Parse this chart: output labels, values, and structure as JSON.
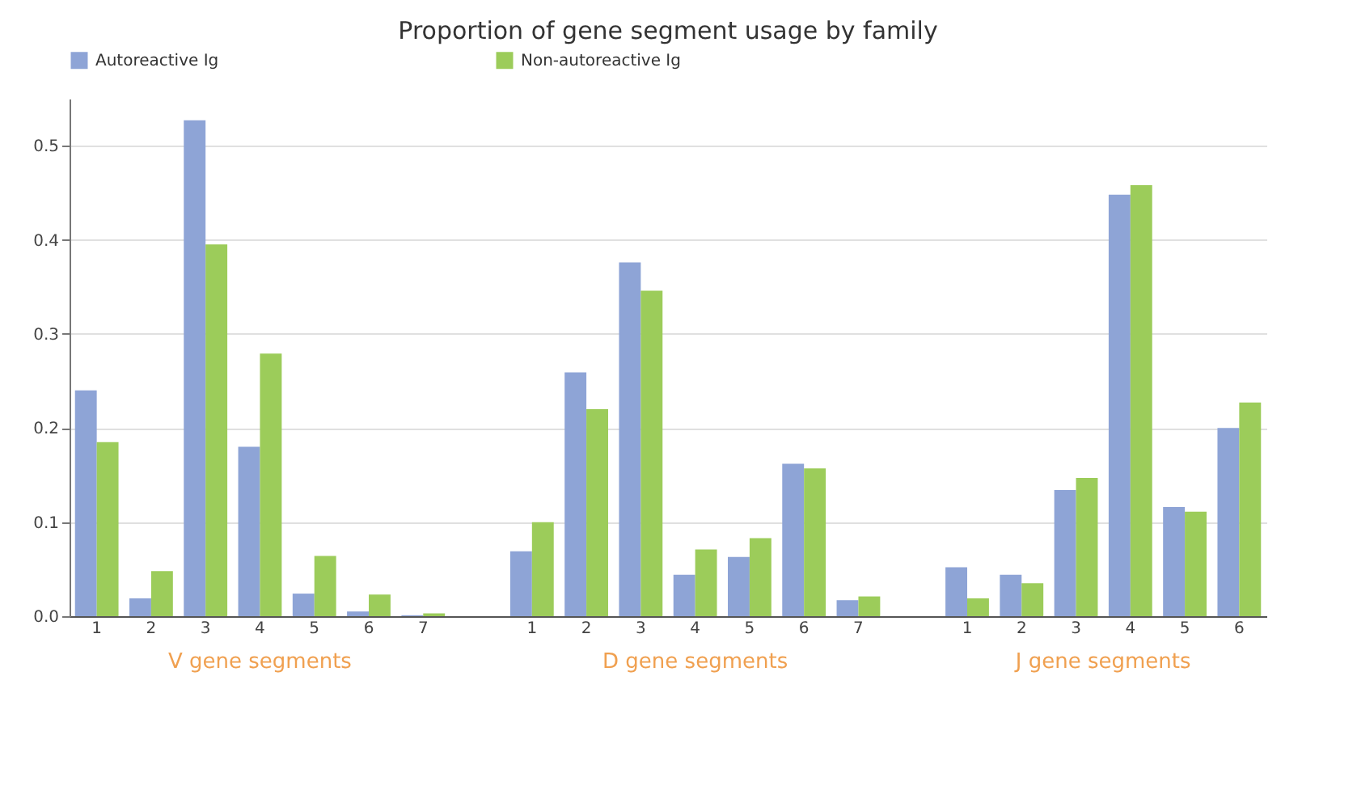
{
  "chart_data": {
    "type": "bar",
    "title": "Proportion of gene segment usage by family",
    "categories": [
      "1",
      "2",
      "3",
      "4",
      "5",
      "6",
      "7",
      null,
      "1",
      "2",
      "3",
      "4",
      "5",
      "6",
      "7",
      null,
      "1",
      "2",
      "3",
      "4",
      "5",
      "6"
    ],
    "legend": "top",
    "grid": "y",
    "ylim": [
      0,
      0.55
    ],
    "yticks": [
      {
        "value": 0,
        "label": "0.0"
      },
      0.1,
      0.2,
      0.3,
      0.4,
      0.5
    ],
    "annotations": [
      "V gene segments",
      "D gene segments",
      "J gene segments"
    ],
    "series": [
      {
        "name": "Autoreactive Ig",
        "color": "#8ea4d6",
        "values": [
          0.24,
          0.019,
          0.527,
          0.18,
          0.024,
          0.005,
          0.001,
          null,
          0.069,
          0.259,
          0.376,
          0.044,
          0.063,
          0.162,
          0.017,
          null,
          0.052,
          0.044,
          0.134,
          0.448,
          0.116,
          0.2
        ]
      },
      {
        "name": "Non-autoreactive Ig",
        "color": "#9ccc5a",
        "values": [
          0.185,
          0.048,
          0.395,
          0.279,
          0.064,
          0.023,
          0.003,
          null,
          0.1,
          0.22,
          0.346,
          0.071,
          0.083,
          0.157,
          0.021,
          null,
          0.019,
          0.035,
          0.147,
          0.458,
          0.111,
          0.227
        ]
      }
    ]
  }
}
